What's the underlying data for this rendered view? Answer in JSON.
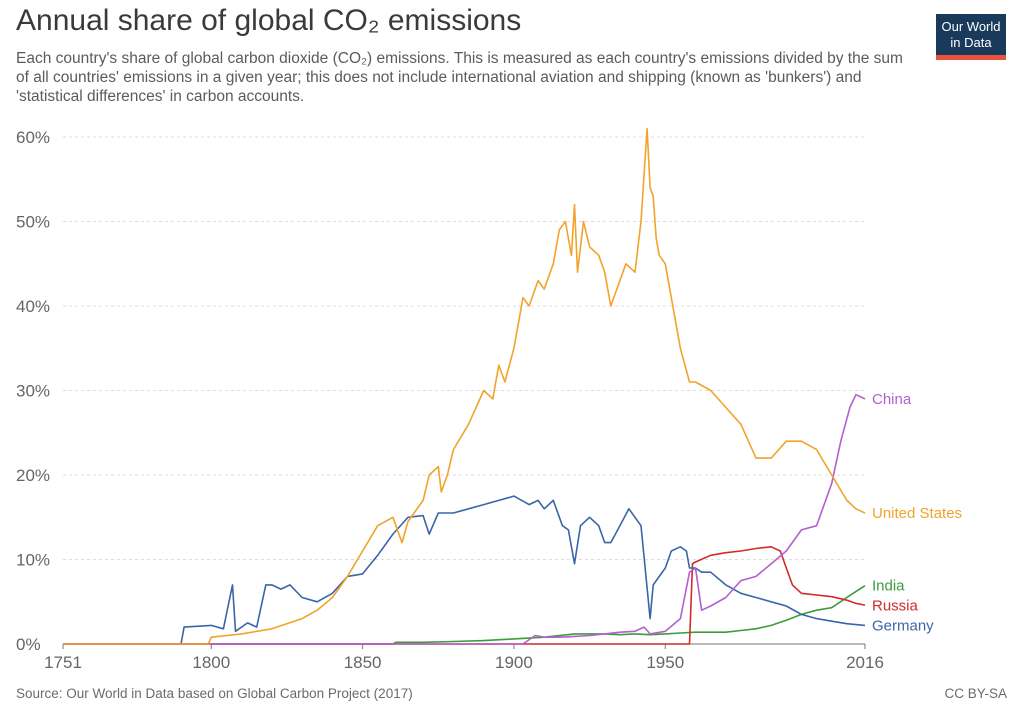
{
  "header": {
    "title": "Annual share of global CO₂ emissions",
    "subtitle": "Each country's share of global carbon dioxide (CO₂) emissions. This is measured as each country's emissions divided by the sum of all countries' emissions in a given year; this does not include international aviation and shipping (known as 'bunkers') and 'statistical differences' in carbon accounts.",
    "logo_line1": "Our World",
    "logo_line2": "in Data"
  },
  "footer": {
    "source": "Source: Our World in Data based on Global Carbon Project (2017)",
    "license": "CC BY-SA"
  },
  "colors": {
    "United States": "#f1a32c",
    "Germany": "#3a66a8",
    "China": "#b45fd0",
    "India": "#3c9c3c",
    "Russia": "#d12a2a",
    "grid": "#dddddd",
    "axis": "#777777"
  },
  "chart_data": {
    "type": "line",
    "xlim": [
      1751,
      2016
    ],
    "ylim": [
      0,
      60
    ],
    "x_ticks": [
      1751,
      1800,
      1850,
      1900,
      1950,
      2016
    ],
    "x_tick_labels": [
      "1751",
      "1800",
      "1850",
      "1900",
      "1950",
      "2016"
    ],
    "y_ticks": [
      0,
      10,
      20,
      30,
      40,
      50,
      60
    ],
    "y_tick_labels": [
      "0%",
      "10%",
      "20%",
      "30%",
      "40%",
      "50%",
      "60%"
    ],
    "grid": "horizontal dashed",
    "series": [
      {
        "name": "United States",
        "points": [
          [
            1751,
            0
          ],
          [
            1799,
            0
          ],
          [
            1800,
            0.8
          ],
          [
            1810,
            1.2
          ],
          [
            1820,
            1.8
          ],
          [
            1830,
            3
          ],
          [
            1835,
            4
          ],
          [
            1840,
            5.5
          ],
          [
            1845,
            8
          ],
          [
            1850,
            11
          ],
          [
            1855,
            14
          ],
          [
            1860,
            15
          ],
          [
            1863,
            12
          ],
          [
            1865,
            14.5
          ],
          [
            1870,
            17
          ],
          [
            1872,
            20
          ],
          [
            1875,
            21
          ],
          [
            1876,
            18
          ],
          [
            1878,
            20
          ],
          [
            1880,
            23
          ],
          [
            1885,
            26
          ],
          [
            1890,
            30
          ],
          [
            1893,
            29
          ],
          [
            1895,
            33
          ],
          [
            1897,
            31
          ],
          [
            1900,
            35
          ],
          [
            1903,
            41
          ],
          [
            1905,
            40
          ],
          [
            1908,
            43
          ],
          [
            1910,
            42
          ],
          [
            1913,
            45
          ],
          [
            1915,
            49
          ],
          [
            1917,
            50
          ],
          [
            1919,
            46
          ],
          [
            1920,
            52
          ],
          [
            1921,
            44
          ],
          [
            1923,
            50
          ],
          [
            1925,
            47
          ],
          [
            1928,
            46
          ],
          [
            1930,
            44
          ],
          [
            1932,
            40
          ],
          [
            1934,
            42
          ],
          [
            1937,
            45
          ],
          [
            1940,
            44
          ],
          [
            1942,
            50
          ],
          [
            1944,
            61
          ],
          [
            1945,
            54
          ],
          [
            1946,
            53
          ],
          [
            1947,
            48
          ],
          [
            1948,
            46
          ],
          [
            1950,
            45
          ],
          [
            1952,
            41
          ],
          [
            1955,
            35
          ],
          [
            1958,
            31
          ],
          [
            1960,
            31
          ],
          [
            1965,
            30
          ],
          [
            1970,
            28
          ],
          [
            1975,
            26
          ],
          [
            1980,
            22
          ],
          [
            1985,
            22
          ],
          [
            1990,
            24
          ],
          [
            1995,
            24
          ],
          [
            2000,
            23
          ],
          [
            2005,
            20
          ],
          [
            2010,
            17
          ],
          [
            2013,
            16
          ],
          [
            2016,
            15.5
          ]
        ]
      },
      {
        "name": "Germany",
        "points": [
          [
            1751,
            0
          ],
          [
            1790,
            0
          ],
          [
            1791,
            2
          ],
          [
            1800,
            2.2
          ],
          [
            1804,
            1.8
          ],
          [
            1807,
            7
          ],
          [
            1808,
            1.5
          ],
          [
            1812,
            2.5
          ],
          [
            1815,
            2
          ],
          [
            1818,
            7
          ],
          [
            1820,
            7
          ],
          [
            1823,
            6.5
          ],
          [
            1826,
            7
          ],
          [
            1830,
            5.5
          ],
          [
            1835,
            5
          ],
          [
            1840,
            6
          ],
          [
            1845,
            8
          ],
          [
            1850,
            8.3
          ],
          [
            1855,
            10.5
          ],
          [
            1860,
            13
          ],
          [
            1865,
            15
          ],
          [
            1870,
            15.2
          ],
          [
            1872,
            13
          ],
          [
            1875,
            15.5
          ],
          [
            1880,
            15.5
          ],
          [
            1885,
            16
          ],
          [
            1890,
            16.5
          ],
          [
            1895,
            17
          ],
          [
            1900,
            17.5
          ],
          [
            1905,
            16.5
          ],
          [
            1908,
            17
          ],
          [
            1910,
            16
          ],
          [
            1913,
            17
          ],
          [
            1916,
            14
          ],
          [
            1918,
            13.5
          ],
          [
            1920,
            9.5
          ],
          [
            1922,
            14
          ],
          [
            1925,
            15
          ],
          [
            1928,
            14
          ],
          [
            1930,
            12
          ],
          [
            1932,
            12
          ],
          [
            1935,
            14
          ],
          [
            1938,
            16
          ],
          [
            1940,
            15
          ],
          [
            1942,
            14
          ],
          [
            1945,
            3
          ],
          [
            1946,
            7
          ],
          [
            1950,
            9
          ],
          [
            1952,
            11
          ],
          [
            1955,
            11.5
          ],
          [
            1957,
            11
          ],
          [
            1958,
            9
          ],
          [
            1960,
            9
          ],
          [
            1962,
            8.5
          ],
          [
            1965,
            8.5
          ],
          [
            1970,
            7
          ],
          [
            1975,
            6
          ],
          [
            1980,
            5.5
          ],
          [
            1985,
            5
          ],
          [
            1990,
            4.5
          ],
          [
            1995,
            3.5
          ],
          [
            2000,
            3
          ],
          [
            2005,
            2.7
          ],
          [
            2010,
            2.4
          ],
          [
            2013,
            2.3
          ],
          [
            2016,
            2.2
          ]
        ]
      },
      {
        "name": "China",
        "points": [
          [
            1751,
            0
          ],
          [
            1903,
            0
          ],
          [
            1907,
            1
          ],
          [
            1910,
            0.8
          ],
          [
            1915,
            0.8
          ],
          [
            1920,
            0.9
          ],
          [
            1925,
            1
          ],
          [
            1930,
            1.2
          ],
          [
            1935,
            1.4
          ],
          [
            1940,
            1.5
          ],
          [
            1943,
            2
          ],
          [
            1945,
            1.2
          ],
          [
            1950,
            1.5
          ],
          [
            1955,
            3
          ],
          [
            1958,
            8.5
          ],
          [
            1960,
            9
          ],
          [
            1962,
            4
          ],
          [
            1965,
            4.5
          ],
          [
            1970,
            5.5
          ],
          [
            1975,
            7.5
          ],
          [
            1980,
            8
          ],
          [
            1985,
            9.5
          ],
          [
            1990,
            11
          ],
          [
            1995,
            13.5
          ],
          [
            2000,
            14
          ],
          [
            2005,
            19
          ],
          [
            2008,
            24
          ],
          [
            2011,
            28
          ],
          [
            2013,
            29.5
          ],
          [
            2016,
            29
          ]
        ]
      },
      {
        "name": "India",
        "points": [
          [
            1751,
            0
          ],
          [
            1860,
            0
          ],
          [
            1861,
            0.2
          ],
          [
            1870,
            0.2
          ],
          [
            1880,
            0.3
          ],
          [
            1890,
            0.4
          ],
          [
            1900,
            0.6
          ],
          [
            1910,
            0.8
          ],
          [
            1920,
            1.2
          ],
          [
            1925,
            1.2
          ],
          [
            1930,
            1.2
          ],
          [
            1935,
            1.1
          ],
          [
            1940,
            1.2
          ],
          [
            1945,
            1.1
          ],
          [
            1950,
            1.2
          ],
          [
            1955,
            1.3
          ],
          [
            1960,
            1.4
          ],
          [
            1965,
            1.4
          ],
          [
            1970,
            1.4
          ],
          [
            1975,
            1.6
          ],
          [
            1980,
            1.8
          ],
          [
            1985,
            2.2
          ],
          [
            1990,
            2.8
          ],
          [
            1995,
            3.5
          ],
          [
            2000,
            4
          ],
          [
            2005,
            4.3
          ],
          [
            2010,
            5.5
          ],
          [
            2013,
            6.2
          ],
          [
            2016,
            6.9
          ]
        ]
      },
      {
        "name": "Russia",
        "points": [
          [
            1751,
            0
          ],
          [
            1958,
            0
          ],
          [
            1959,
            9.5
          ],
          [
            1960,
            9.7
          ],
          [
            1965,
            10.5
          ],
          [
            1970,
            10.8
          ],
          [
            1975,
            11
          ],
          [
            1980,
            11.3
          ],
          [
            1985,
            11.5
          ],
          [
            1988,
            11
          ],
          [
            1990,
            9
          ],
          [
            1992,
            7
          ],
          [
            1995,
            6
          ],
          [
            2000,
            5.8
          ],
          [
            2005,
            5.6
          ],
          [
            2010,
            5.2
          ],
          [
            2013,
            4.8
          ],
          [
            2016,
            4.6
          ]
        ]
      }
    ],
    "end_labels": [
      "China",
      "United States",
      "India",
      "Russia",
      "Germany"
    ]
  }
}
